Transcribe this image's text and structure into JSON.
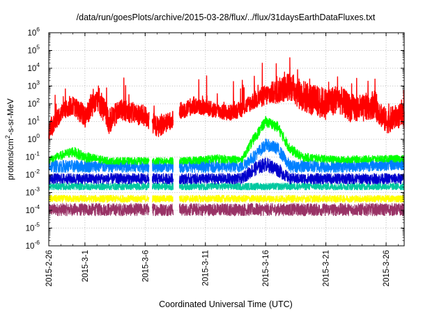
{
  "chart_data": {
    "type": "line",
    "title": "/data/run/goesPlots/archive/2015-03-28/flux/../flux/31daysEarthDataFluxes.txt",
    "xlabel": "Coordinated Universal Time (UTC)",
    "ylabel_base": "protons/cm",
    "ylabel_sup": "2",
    "ylabel_rest": "-s-sr-MeV",
    "yscale": "log",
    "ylim": [
      1e-06,
      1000000.0
    ],
    "y_ticks": [
      {
        "value": 1e-06,
        "base": "10",
        "exp": "-6"
      },
      {
        "value": 1e-05,
        "base": "10",
        "exp": "-5"
      },
      {
        "value": 0.0001,
        "base": "10",
        "exp": "-4"
      },
      {
        "value": 0.001,
        "base": "10",
        "exp": "-3"
      },
      {
        "value": 0.01,
        "base": "10",
        "exp": "-2"
      },
      {
        "value": 0.1,
        "base": "10",
        "exp": "-1"
      },
      {
        "value": 1.0,
        "base": "10",
        "exp": "0"
      },
      {
        "value": 10.0,
        "base": "10",
        "exp": "1"
      },
      {
        "value": 100.0,
        "base": "10",
        "exp": "2"
      },
      {
        "value": 1000.0,
        "base": "10",
        "exp": "3"
      },
      {
        "value": 10000.0,
        "base": "10",
        "exp": "4"
      },
      {
        "value": 100000.0,
        "base": "10",
        "exp": "5"
      },
      {
        "value": 1000000.0,
        "base": "10",
        "exp": "6"
      }
    ],
    "xlim": [
      "2015-02-26",
      "2015-03-27T12:00"
    ],
    "x_ticks": [
      "2015-2-26",
      "2015-3-1",
      "2015-3-6",
      "2015-3-11",
      "2015-3-16",
      "2015-3-21",
      "2015-3-26"
    ],
    "x_tick_dates": [
      "2015-02-26",
      "2015-03-01",
      "2015-03-06",
      "2015-03-11",
      "2015-03-16",
      "2015-03-21",
      "2015-03-26"
    ],
    "grid": true,
    "data_gaps": [
      [
        "2015-03-06T08:00",
        "2015-03-06T14:00"
      ],
      [
        "2015-03-08T08:00",
        "2015-03-08T20:00"
      ]
    ],
    "series": [
      {
        "color": "#ff0000",
        "x": [
          "2015-02-26",
          "2015-02-27",
          "2015-02-28",
          "2015-03-01",
          "2015-03-02",
          "2015-03-03",
          "2015-03-04",
          "2015-03-05",
          "2015-03-06",
          "2015-03-07",
          "2015-03-08",
          "2015-03-09",
          "2015-03-10",
          "2015-03-11",
          "2015-03-12",
          "2015-03-13",
          "2015-03-14",
          "2015-03-15",
          "2015-03-16",
          "2015-03-17",
          "2015-03-18",
          "2015-03-19",
          "2015-03-20",
          "2015-03-21",
          "2015-03-22",
          "2015-03-23",
          "2015-03-24",
          "2015-03-25",
          "2015-03-26",
          "2015-03-27"
        ],
        "values": [
          3,
          30,
          80,
          20,
          300,
          10,
          50,
          30,
          20,
          5,
          10,
          40,
          80,
          60,
          40,
          30,
          50,
          150,
          300,
          500,
          1000,
          300,
          150,
          100,
          200,
          60,
          50,
          100,
          10,
          20
        ],
        "spread": [
          0.6,
          0.5,
          0.5,
          0.7,
          0.8,
          0.7,
          0.6,
          0.6,
          0.6,
          0.6,
          0.5,
          0.5,
          0.5,
          0.45,
          0.45,
          0.45,
          0.45,
          0.5,
          0.6,
          0.7,
          0.8,
          0.9,
          0.9,
          0.9,
          0.8,
          0.8,
          0.8,
          0.8,
          0.7,
          0.7
        ]
      },
      {
        "color": "#00ff00",
        "x": [
          "2015-02-26",
          "2015-02-28",
          "2015-03-01",
          "2015-03-03",
          "2015-03-06",
          "2015-03-09",
          "2015-03-12",
          "2015-03-14",
          "2015-03-15",
          "2015-03-16",
          "2015-03-17",
          "2015-03-18",
          "2015-03-19",
          "2015-03-22",
          "2015-03-25",
          "2015-03-27"
        ],
        "values": [
          0.07,
          0.2,
          0.1,
          0.06,
          0.06,
          0.06,
          0.08,
          0.07,
          1,
          10,
          5,
          0.3,
          0.1,
          0.07,
          0.08,
          0.08
        ],
        "spread": [
          0.2,
          0.3,
          0.3,
          0.2,
          0.2,
          0.2,
          0.25,
          0.2,
          0.3,
          0.3,
          0.3,
          0.3,
          0.25,
          0.2,
          0.2,
          0.2
        ]
      },
      {
        "color": "#0080ff",
        "x": [
          "2015-02-26",
          "2015-03-03",
          "2015-03-09",
          "2015-03-14",
          "2015-03-15",
          "2015-03-16",
          "2015-03-17",
          "2015-03-18",
          "2015-03-19",
          "2015-03-22",
          "2015-03-27"
        ],
        "values": [
          0.03,
          0.03,
          0.03,
          0.03,
          0.1,
          0.5,
          0.3,
          0.03,
          0.03,
          0.03,
          0.04
        ],
        "spread": [
          0.35,
          0.35,
          0.35,
          0.35,
          0.35,
          0.35,
          0.35,
          0.35,
          0.35,
          0.35,
          0.35
        ]
      },
      {
        "color": "#0000cc",
        "x": [
          "2015-02-26",
          "2015-03-03",
          "2015-03-09",
          "2015-03-14",
          "2015-03-15",
          "2015-03-16",
          "2015-03-17",
          "2015-03-18",
          "2015-03-22",
          "2015-03-27"
        ],
        "values": [
          0.006,
          0.006,
          0.006,
          0.006,
          0.02,
          0.04,
          0.02,
          0.006,
          0.006,
          0.006
        ],
        "spread": [
          0.3,
          0.3,
          0.3,
          0.3,
          0.4,
          0.4,
          0.4,
          0.3,
          0.3,
          0.3
        ]
      },
      {
        "color": "#00c8a0",
        "x": [
          "2015-02-26",
          "2015-03-27"
        ],
        "values": [
          0.0022,
          0.0022
        ],
        "spread": [
          0.2,
          0.2
        ]
      },
      {
        "color": "#ffff00",
        "x": [
          "2015-02-26",
          "2015-03-27"
        ],
        "values": [
          0.00045,
          0.00045
        ],
        "spread": [
          0.2,
          0.2
        ]
      },
      {
        "color": "#993366",
        "x": [
          "2015-02-26",
          "2015-03-27"
        ],
        "values": [
          0.00011,
          0.00011
        ],
        "spread": [
          0.35,
          0.35
        ]
      }
    ]
  }
}
